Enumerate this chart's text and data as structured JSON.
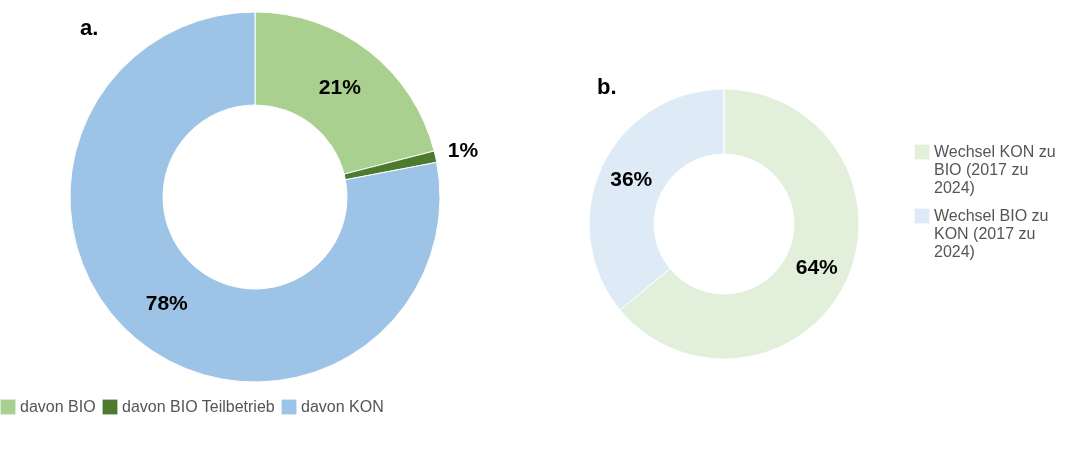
{
  "chart_data": [
    {
      "type": "donut",
      "title": "a.",
      "categories": [
        "davon BIO",
        "davon BIO Teilbetrieb",
        "davon KON"
      ],
      "values": [
        21,
        1,
        78
      ],
      "colors": [
        "#a9d08e",
        "#4e7a2d",
        "#9dc3e6"
      ],
      "value_labels": [
        "21%",
        "1%",
        "78%"
      ],
      "legend": "bottom"
    },
    {
      "type": "donut",
      "title": "b.",
      "categories": [
        "Wechsel KON zu BIO (2017 zu 2024)",
        "Wechsel BIO zu KON (2017 zu 2024)"
      ],
      "values": [
        64,
        36
      ],
      "colors": [
        "#e2efda",
        "#deebf7"
      ],
      "value_labels": [
        "64%",
        "36%"
      ],
      "legend": "right"
    }
  ]
}
